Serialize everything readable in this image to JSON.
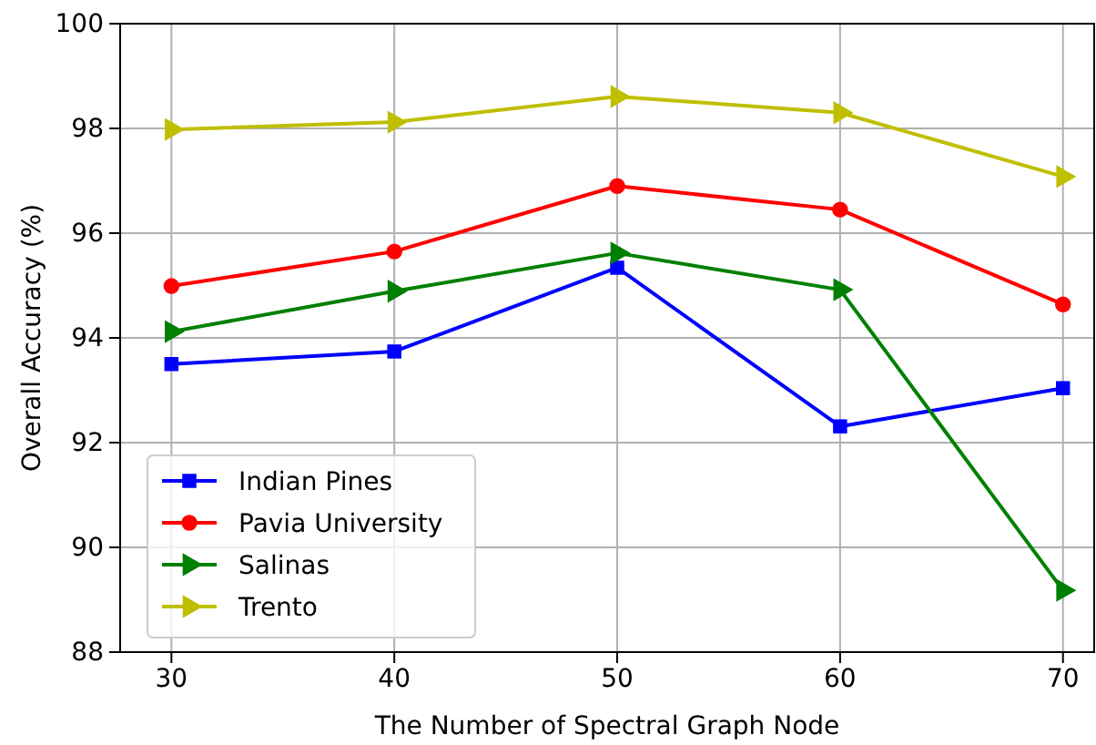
{
  "chart_data": {
    "type": "line",
    "xlabel": "The Number of Spectral Graph Node",
    "ylabel": "Overall Accuracy (%)",
    "x": [
      30,
      40,
      50,
      60,
      70
    ],
    "xlim": [
      27.7,
      71.4
    ],
    "xticks": [
      30,
      40,
      50,
      60,
      70
    ],
    "ylim": [
      88,
      100
    ],
    "yticks": [
      88,
      90,
      92,
      94,
      96,
      98,
      100
    ],
    "grid": true,
    "legend": "bottom left",
    "line_style": "solid",
    "series": [
      {
        "name": "Indian Pines",
        "color": "#0000ff",
        "marker": "square",
        "values": [
          93.5,
          93.74,
          95.34,
          92.31,
          93.04
        ]
      },
      {
        "name": "Pavia University",
        "color": "#ff0000",
        "marker": "circle",
        "values": [
          94.99,
          95.65,
          96.9,
          96.45,
          94.64
        ]
      },
      {
        "name": "Salinas",
        "color": "#008000",
        "marker": "triangle",
        "values": [
          94.12,
          94.89,
          95.62,
          94.92,
          89.18
        ]
      },
      {
        "name": "Trento",
        "color": "#bfbf00",
        "marker": "triangle",
        "values": [
          97.98,
          98.12,
          98.61,
          98.3,
          97.08
        ]
      }
    ]
  }
}
